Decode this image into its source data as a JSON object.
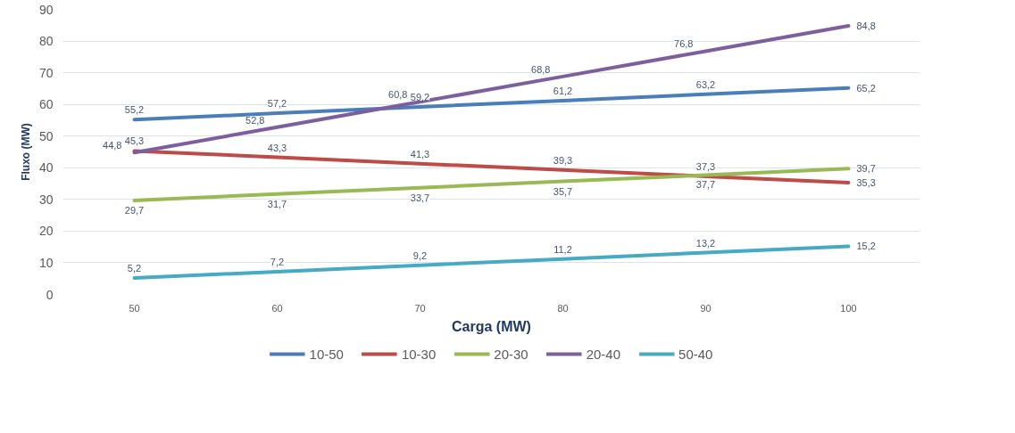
{
  "chart_data": {
    "type": "line",
    "xlabel": "Carga (MW)",
    "ylabel": "Fluxo (MW)",
    "categories": [
      "50",
      "60",
      "70",
      "80",
      "90",
      "100"
    ],
    "series": [
      {
        "name": "10-50",
        "color": "#4a7ebb",
        "values": [
          55.2,
          57.2,
          59.2,
          61.2,
          63.2,
          65.2
        ],
        "value_labels": [
          "55,2",
          "57,2",
          "59,2",
          "61,2",
          "63,2",
          "65,2"
        ]
      },
      {
        "name": "10-30",
        "color": "#be4b48",
        "values": [
          45.3,
          43.3,
          41.3,
          39.3,
          37.3,
          35.3
        ],
        "value_labels": [
          "45,3",
          "43,3",
          "41,3",
          "39,3",
          "37,3",
          "35,3"
        ]
      },
      {
        "name": "20-30",
        "color": "#98b954",
        "values": [
          29.7,
          31.7,
          33.7,
          35.7,
          37.7,
          39.7
        ],
        "value_labels": [
          "29,7",
          "31,7",
          "33,7",
          "35,7",
          "37,7",
          "39,7"
        ]
      },
      {
        "name": "20-40",
        "color": "#7d5fa0",
        "values": [
          44.8,
          52.8,
          60.8,
          68.8,
          76.8,
          84.8
        ],
        "value_labels": [
          "44,8",
          "52,8",
          "60,8",
          "68,8",
          "76,8",
          "84,8"
        ]
      },
      {
        "name": "50-40",
        "color": "#46aac5",
        "values": [
          5.2,
          7.2,
          9.2,
          11.2,
          13.2,
          15.2
        ],
        "value_labels": [
          "5,2",
          "7,2",
          "9,2",
          "11,2",
          "13,2",
          "15,2"
        ]
      }
    ],
    "ylim": [
      0,
      90
    ],
    "yticks": [
      0,
      10,
      20,
      30,
      40,
      50,
      60,
      70,
      80,
      90
    ],
    "grid": "y",
    "legend": "bottom",
    "marker": "none",
    "line_style": "solid"
  }
}
